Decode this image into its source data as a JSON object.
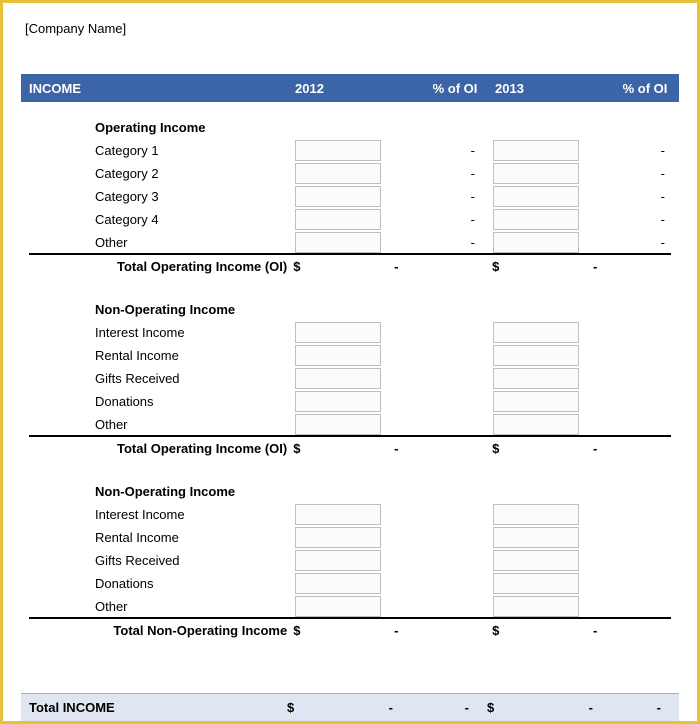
{
  "company_name": "[Company Name]",
  "header": {
    "title": "INCOME",
    "col_2012": "2012",
    "col_pct1": "% of OI",
    "col_2013": "2013",
    "col_pct2": "% of OI"
  },
  "sections": [
    {
      "title": "Operating Income",
      "rows": [
        {
          "label": "Category 1",
          "pct1": "-",
          "pct2": "-"
        },
        {
          "label": "Category 2",
          "pct1": "-",
          "pct2": "-"
        },
        {
          "label": "Category 3",
          "pct1": "-",
          "pct2": "-"
        },
        {
          "label": "Category 4",
          "pct1": "-",
          "pct2": "-"
        },
        {
          "label": "Other",
          "pct1": "-",
          "pct2": "-"
        }
      ],
      "total_label": "Total Operating Income (OI)",
      "total": {
        "sym": "$",
        "v2012": "-",
        "pct1": "",
        "v2013": "-",
        "pct2": ""
      }
    },
    {
      "title": "Non-Operating Income",
      "rows": [
        {
          "label": "Interest Income",
          "pct1": "",
          "pct2": ""
        },
        {
          "label": "Rental Income",
          "pct1": "",
          "pct2": ""
        },
        {
          "label": "Gifts Received",
          "pct1": "",
          "pct2": ""
        },
        {
          "label": "Donations",
          "pct1": "",
          "pct2": ""
        },
        {
          "label": "Other",
          "pct1": "",
          "pct2": ""
        }
      ],
      "total_label": "Total Operating Income (OI)",
      "total": {
        "sym": "$",
        "v2012": "-",
        "pct1": "",
        "v2013": "-",
        "pct2": ""
      }
    },
    {
      "title": "Non-Operating Income",
      "rows": [
        {
          "label": "Interest Income",
          "pct1": "",
          "pct2": ""
        },
        {
          "label": "Rental Income",
          "pct1": "",
          "pct2": ""
        },
        {
          "label": "Gifts Received",
          "pct1": "",
          "pct2": ""
        },
        {
          "label": "Donations",
          "pct1": "",
          "pct2": ""
        },
        {
          "label": "Other",
          "pct1": "",
          "pct2": ""
        }
      ],
      "total_label": "Total Non-Operating Income",
      "total": {
        "sym": "$",
        "v2012": "-",
        "pct1": "",
        "v2013": "-",
        "pct2": ""
      }
    }
  ],
  "grand_total": {
    "label": "Total INCOME",
    "sym": "$",
    "v2012": "-",
    "pct1": "-",
    "v2013": "-",
    "pct2": "-"
  },
  "colors": {
    "header_bg": "#3b65a6",
    "header_fg": "#ffffff",
    "border": "#e6c23a",
    "grand_bg": "#dfe6f2",
    "cell_border": "#bfbfbf"
  }
}
